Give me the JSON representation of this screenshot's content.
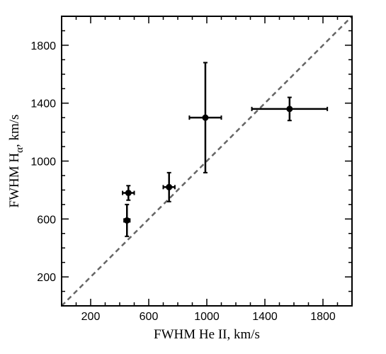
{
  "chart_data": {
    "type": "scatter",
    "title": "",
    "xlabel": "FWHM He II, km/s",
    "ylabel": {
      "prefix": "FWHM H",
      "subscript": "α",
      "suffix": ", km/s"
    },
    "xlim": [
      0,
      2000
    ],
    "ylim": [
      0,
      2000
    ],
    "x_ticks": [
      200,
      600,
      1000,
      1400,
      1800
    ],
    "y_ticks": [
      200,
      600,
      1000,
      1400,
      1800
    ],
    "x_minor_step": 100,
    "y_minor_step": 100,
    "grid": false,
    "reference_line": {
      "style": "dashed",
      "color": "#666666",
      "from": [
        0,
        0
      ],
      "to": [
        2000,
        2000
      ]
    },
    "points": [
      {
        "x": 450,
        "y": 590,
        "x_err": [
          20,
          20
        ],
        "y_err": [
          110,
          110
        ]
      },
      {
        "x": 460,
        "y": 780,
        "x_err": [
          40,
          40
        ],
        "y_err": [
          50,
          50
        ]
      },
      {
        "x": 740,
        "y": 820,
        "x_err": [
          40,
          40
        ],
        "y_err": [
          100,
          100
        ]
      },
      {
        "x": 990,
        "y": 1300,
        "x_err": [
          110,
          110
        ],
        "y_err": [
          380,
          380
        ]
      },
      {
        "x": 1570,
        "y": 1360,
        "x_err": [
          260,
          260
        ],
        "y_err": [
          80,
          80
        ]
      }
    ]
  },
  "colors": {
    "axis": "#000000",
    "points": "#000000",
    "reference": "#666666"
  }
}
